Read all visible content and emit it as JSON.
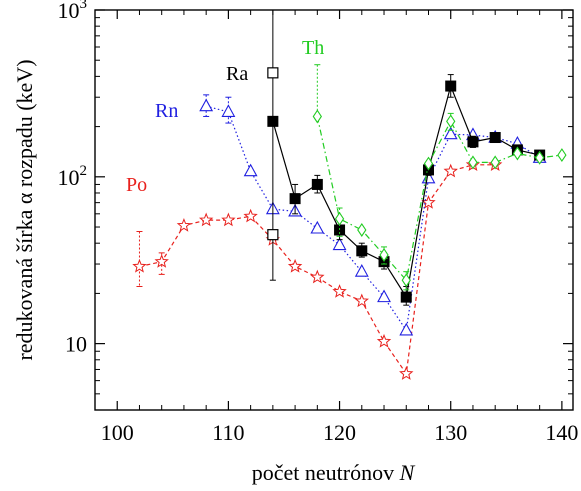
{
  "chart_data": {
    "type": "line",
    "xlabel_text": "počet neutrónov ",
    "xlabel_var": "N",
    "ylabel": "redukovaná šírka α rozpadu (keV)",
    "xlim": [
      98,
      141
    ],
    "ylim": [
      4,
      1000
    ],
    "yscale": "log",
    "x_ticks": [
      100,
      110,
      120,
      130,
      140
    ],
    "y_ticks": [
      {
        "value": 10,
        "base": "10",
        "exp": ""
      },
      {
        "value": 100,
        "base": "10",
        "exp": "2"
      },
      {
        "value": 1000,
        "base": "10",
        "exp": "3"
      }
    ],
    "series": [
      {
        "name": "Po",
        "color": "#e8211d",
        "marker": "star",
        "dash": "4,3",
        "x": [
          102,
          104,
          106,
          108,
          110,
          112,
          114,
          116,
          118,
          120,
          122,
          124,
          126,
          128,
          130,
          132,
          134
        ],
        "y": [
          29,
          31,
          51,
          55,
          55,
          58,
          42,
          29,
          25,
          20.5,
          18,
          10.3,
          6.6,
          70,
          108,
          118,
          118
        ],
        "err_low": [
          22,
          26,
          null,
          null,
          null,
          null,
          null,
          null,
          null,
          null,
          null,
          null,
          null,
          null,
          null,
          null,
          null
        ],
        "err_high": [
          47,
          35,
          null,
          null,
          null,
          null,
          null,
          null,
          null,
          null,
          null,
          null,
          null,
          null,
          null,
          null,
          null
        ]
      },
      {
        "name": "Rn",
        "color": "#1f1fe0",
        "marker": "triangle",
        "dash": "1.5,2.5",
        "x": [
          108,
          110,
          112,
          114,
          116,
          118,
          120,
          122,
          124,
          126,
          128,
          130,
          132,
          134,
          136,
          138
        ],
        "y": [
          265,
          245,
          108,
          64,
          62,
          49,
          39,
          27,
          19,
          12,
          98,
          180,
          178,
          172,
          158,
          130
        ],
        "err_low": [
          230,
          210,
          null,
          null,
          null,
          null,
          null,
          null,
          null,
          null,
          null,
          null,
          null,
          null,
          null,
          null
        ],
        "err_high": [
          310,
          300,
          null,
          null,
          null,
          null,
          null,
          null,
          null,
          null,
          null,
          null,
          null,
          null,
          null,
          null
        ]
      },
      {
        "name": "Ra",
        "color": "#000000",
        "marker": "square-filled",
        "dash": "",
        "x": [
          114,
          116,
          118,
          120,
          122,
          124,
          126,
          128,
          130,
          132,
          134,
          136,
          138
        ],
        "y": [
          215,
          74,
          90,
          48,
          36,
          31,
          19,
          110,
          350,
          162,
          172,
          145,
          135
        ],
        "err_low": [
          24,
          60,
          80,
          42,
          33,
          28,
          17,
          102,
          300,
          150,
          162,
          138,
          128
        ],
        "err_high": [
          1000,
          90,
          102,
          55,
          40,
          35,
          22,
          118,
          410,
          175,
          182,
          152,
          142
        ]
      },
      {
        "name": "Th",
        "color": "#22cc22",
        "marker": "diamond",
        "dash": "6,3,1.5,3",
        "x": [
          118,
          120,
          122,
          124,
          126,
          128,
          130,
          132,
          134,
          136,
          138,
          140
        ],
        "y": [
          230,
          56,
          48,
          34,
          24,
          120,
          215,
          122,
          122,
          138,
          130,
          135
        ],
        "err_low": [
          null,
          44,
          null,
          30,
          21,
          null,
          190,
          null,
          null,
          null,
          null,
          null
        ],
        "err_high": [
          470,
          65,
          null,
          38,
          27,
          null,
          240,
          null,
          null,
          null,
          null,
          null
        ]
      }
    ],
    "extra_points": [
      {
        "series": "Ra",
        "x": 114,
        "y": 420,
        "marker": "square-open"
      },
      {
        "series": "Ra",
        "x": 114,
        "y": 45,
        "marker": "square-open"
      }
    ]
  }
}
